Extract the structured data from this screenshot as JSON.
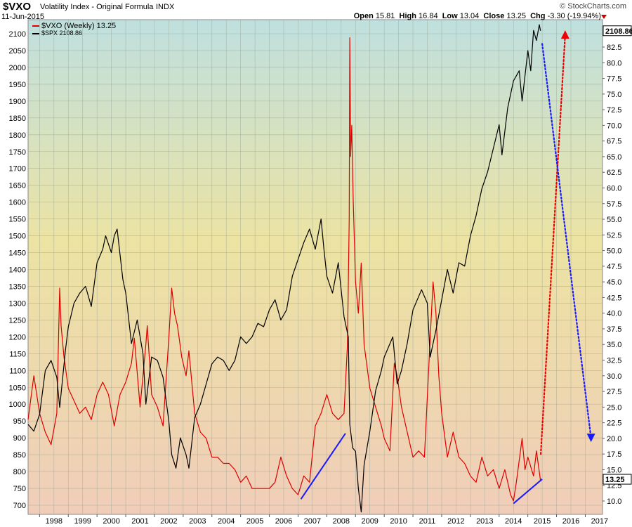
{
  "header": {
    "symbol": "$VXO",
    "subtitle": "Volatility Index - Original Formula",
    "exchange": "INDX",
    "date": "11-Jun-2015",
    "watermark": "© StockCharts.com",
    "open_label": "Open",
    "open_value": "15.81",
    "high_label": "High",
    "high_value": "16.84",
    "low_label": "Low",
    "low_value": "13.04",
    "close_label": "Close",
    "close_value": "13.25",
    "chg_label": "Chg",
    "chg_value": "-3.30 (-19.94%)"
  },
  "legend": {
    "vxo": "$VXO (Weekly) 13.25",
    "spx": "$SPX 2108.86"
  },
  "colors": {
    "vxo": "#dd0000",
    "spx": "#000000",
    "trendline": "#1a1aff",
    "forecast_up": "#ee0000",
    "forecast_down": "#1a1aff"
  },
  "chart_data": {
    "type": "line",
    "x_tick_labels": [
      "1998",
      "1999",
      "2000",
      "2001",
      "2002",
      "2003",
      "2004",
      "2005",
      "2006",
      "2007",
      "2008",
      "2009",
      "2010",
      "2011",
      "2012",
      "2013",
      "2014",
      "2015",
      "2016",
      "2017"
    ],
    "xlim": [
      1997.6,
      2017.6
    ],
    "left_axis": {
      "ticks": [
        700,
        750,
        800,
        850,
        900,
        950,
        1000,
        1050,
        1100,
        1150,
        1200,
        1250,
        1300,
        1350,
        1400,
        1450,
        1500,
        1550,
        1600,
        1650,
        1700,
        1750,
        1800,
        1850,
        1900,
        1950,
        2000,
        2050,
        2100
      ],
      "ylim": [
        671,
        2137
      ]
    },
    "right_axis": {
      "ticks": [
        "10.0",
        "12.5",
        "15.0",
        "17.5",
        "20.0",
        "22.5",
        "25.0",
        "27.5",
        "30.0",
        "32.5",
        "35.0",
        "37.5",
        "40.0",
        "42.5",
        "45.0",
        "47.5",
        "50.0",
        "52.5",
        "55.0",
        "57.5",
        "60.0",
        "62.5",
        "65.0",
        "67.5",
        "70.0",
        "72.5",
        "75.0",
        "77.5",
        "80.0",
        "82.5"
      ],
      "ylim": [
        7.5,
        85.0
      ]
    },
    "last_value_labels": {
      "spx": "2108.86",
      "vxo": "13.25"
    },
    "grid": true,
    "legend_position": "top-left",
    "series": [
      {
        "name": "$VXO (Weekly) 13.25",
        "axis": "right",
        "points": [
          [
            1997.6,
            23
          ],
          [
            1997.8,
            30
          ],
          [
            1998.0,
            24
          ],
          [
            1998.2,
            21
          ],
          [
            1998.4,
            19
          ],
          [
            1998.6,
            24
          ],
          [
            1998.7,
            44
          ],
          [
            1998.75,
            38
          ],
          [
            1998.85,
            33
          ],
          [
            1999.0,
            28
          ],
          [
            1999.2,
            26
          ],
          [
            1999.4,
            24
          ],
          [
            1999.6,
            25
          ],
          [
            1999.8,
            23
          ],
          [
            2000.0,
            27
          ],
          [
            2000.2,
            29
          ],
          [
            2000.4,
            27
          ],
          [
            2000.6,
            22
          ],
          [
            2000.8,
            27
          ],
          [
            2001.0,
            29
          ],
          [
            2001.2,
            32
          ],
          [
            2001.3,
            36
          ],
          [
            2001.5,
            25
          ],
          [
            2001.7,
            35
          ],
          [
            2001.75,
            38
          ],
          [
            2001.9,
            27
          ],
          [
            2002.1,
            25
          ],
          [
            2002.3,
            22
          ],
          [
            2002.5,
            36
          ],
          [
            2002.6,
            44
          ],
          [
            2002.7,
            40
          ],
          [
            2002.8,
            38
          ],
          [
            2002.95,
            33
          ],
          [
            2003.1,
            30
          ],
          [
            2003.2,
            34
          ],
          [
            2003.4,
            24
          ],
          [
            2003.6,
            21
          ],
          [
            2003.8,
            20
          ],
          [
            2004.0,
            17
          ],
          [
            2004.2,
            17
          ],
          [
            2004.4,
            16
          ],
          [
            2004.6,
            16
          ],
          [
            2004.8,
            15
          ],
          [
            2005.0,
            13
          ],
          [
            2005.2,
            14
          ],
          [
            2005.4,
            12
          ],
          [
            2005.6,
            12
          ],
          [
            2005.8,
            12
          ],
          [
            2006.0,
            12
          ],
          [
            2006.2,
            13
          ],
          [
            2006.4,
            17
          ],
          [
            2006.6,
            14
          ],
          [
            2006.8,
            12
          ],
          [
            2007.0,
            11
          ],
          [
            2007.2,
            14
          ],
          [
            2007.4,
            13
          ],
          [
            2007.6,
            22
          ],
          [
            2007.8,
            24
          ],
          [
            2008.0,
            27
          ],
          [
            2008.2,
            24
          ],
          [
            2008.4,
            23
          ],
          [
            2008.6,
            24
          ],
          [
            2008.72,
            35
          ],
          [
            2008.78,
            55
          ],
          [
            2008.8,
            84
          ],
          [
            2008.83,
            65
          ],
          [
            2008.87,
            70
          ],
          [
            2008.92,
            58
          ],
          [
            2009.0,
            45
          ],
          [
            2009.1,
            40
          ],
          [
            2009.2,
            48
          ],
          [
            2009.3,
            35
          ],
          [
            2009.5,
            28
          ],
          [
            2009.7,
            25
          ],
          [
            2009.9,
            22
          ],
          [
            2010.0,
            20
          ],
          [
            2010.2,
            18
          ],
          [
            2010.35,
            32
          ],
          [
            2010.45,
            30
          ],
          [
            2010.6,
            25
          ],
          [
            2010.8,
            21
          ],
          [
            2011.0,
            17
          ],
          [
            2011.2,
            18
          ],
          [
            2011.4,
            17
          ],
          [
            2011.6,
            36
          ],
          [
            2011.7,
            45
          ],
          [
            2011.8,
            40
          ],
          [
            2011.9,
            30
          ],
          [
            2012.0,
            24
          ],
          [
            2012.2,
            17
          ],
          [
            2012.4,
            21
          ],
          [
            2012.6,
            17
          ],
          [
            2012.8,
            16
          ],
          [
            2013.0,
            14
          ],
          [
            2013.2,
            13
          ],
          [
            2013.4,
            17
          ],
          [
            2013.6,
            14
          ],
          [
            2013.8,
            15
          ],
          [
            2014.0,
            12
          ],
          [
            2014.2,
            15
          ],
          [
            2014.4,
            11
          ],
          [
            2014.5,
            10
          ],
          [
            2014.6,
            13
          ],
          [
            2014.8,
            20
          ],
          [
            2014.9,
            15
          ],
          [
            2015.0,
            17
          ],
          [
            2015.2,
            14
          ],
          [
            2015.3,
            18
          ],
          [
            2015.44,
            13.25
          ]
        ]
      },
      {
        "name": "$SPX 2108.86",
        "axis": "left",
        "points": [
          [
            1997.6,
            940
          ],
          [
            1997.8,
            920
          ],
          [
            1998.0,
            970
          ],
          [
            1998.2,
            1100
          ],
          [
            1998.4,
            1130
          ],
          [
            1998.6,
            1080
          ],
          [
            1998.7,
            990
          ],
          [
            1998.9,
            1160
          ],
          [
            1999.0,
            1230
          ],
          [
            1999.2,
            1300
          ],
          [
            1999.4,
            1330
          ],
          [
            1999.6,
            1350
          ],
          [
            1999.8,
            1290
          ],
          [
            2000.0,
            1420
          ],
          [
            2000.2,
            1460
          ],
          [
            2000.3,
            1500
          ],
          [
            2000.5,
            1450
          ],
          [
            2000.6,
            1500
          ],
          [
            2000.7,
            1520
          ],
          [
            2000.9,
            1370
          ],
          [
            2001.0,
            1330
          ],
          [
            2001.2,
            1180
          ],
          [
            2001.4,
            1250
          ],
          [
            2001.6,
            1150
          ],
          [
            2001.7,
            1000
          ],
          [
            2001.9,
            1140
          ],
          [
            2002.1,
            1130
          ],
          [
            2002.3,
            1080
          ],
          [
            2002.5,
            950
          ],
          [
            2002.6,
            850
          ],
          [
            2002.75,
            810
          ],
          [
            2002.9,
            900
          ],
          [
            2003.1,
            850
          ],
          [
            2003.2,
            810
          ],
          [
            2003.4,
            960
          ],
          [
            2003.6,
            1000
          ],
          [
            2003.8,
            1060
          ],
          [
            2004.0,
            1120
          ],
          [
            2004.2,
            1140
          ],
          [
            2004.4,
            1130
          ],
          [
            2004.6,
            1100
          ],
          [
            2004.8,
            1130
          ],
          [
            2005.0,
            1200
          ],
          [
            2005.2,
            1180
          ],
          [
            2005.4,
            1200
          ],
          [
            2005.6,
            1240
          ],
          [
            2005.8,
            1230
          ],
          [
            2006.0,
            1280
          ],
          [
            2006.2,
            1310
          ],
          [
            2006.4,
            1250
          ],
          [
            2006.6,
            1280
          ],
          [
            2006.8,
            1380
          ],
          [
            2007.0,
            1430
          ],
          [
            2007.2,
            1480
          ],
          [
            2007.4,
            1520
          ],
          [
            2007.6,
            1460
          ],
          [
            2007.8,
            1550
          ],
          [
            2007.9,
            1460
          ],
          [
            2008.0,
            1380
          ],
          [
            2008.2,
            1330
          ],
          [
            2008.4,
            1420
          ],
          [
            2008.6,
            1260
          ],
          [
            2008.75,
            1200
          ],
          [
            2008.8,
            940
          ],
          [
            2008.9,
            870
          ],
          [
            2009.0,
            860
          ],
          [
            2009.1,
            750
          ],
          [
            2009.2,
            680
          ],
          [
            2009.3,
            820
          ],
          [
            2009.5,
            920
          ],
          [
            2009.7,
            1040
          ],
          [
            2009.9,
            1100
          ],
          [
            2010.0,
            1140
          ],
          [
            2010.3,
            1200
          ],
          [
            2010.45,
            1060
          ],
          [
            2010.6,
            1100
          ],
          [
            2010.8,
            1180
          ],
          [
            2011.0,
            1280
          ],
          [
            2011.3,
            1340
          ],
          [
            2011.5,
            1300
          ],
          [
            2011.6,
            1140
          ],
          [
            2011.8,
            1220
          ],
          [
            2012.0,
            1310
          ],
          [
            2012.2,
            1400
          ],
          [
            2012.4,
            1330
          ],
          [
            2012.6,
            1420
          ],
          [
            2012.8,
            1410
          ],
          [
            2013.0,
            1500
          ],
          [
            2013.2,
            1560
          ],
          [
            2013.4,
            1640
          ],
          [
            2013.6,
            1690
          ],
          [
            2013.8,
            1760
          ],
          [
            2014.0,
            1830
          ],
          [
            2014.1,
            1740
          ],
          [
            2014.3,
            1880
          ],
          [
            2014.5,
            1960
          ],
          [
            2014.7,
            1990
          ],
          [
            2014.8,
            1900
          ],
          [
            2015.0,
            2050
          ],
          [
            2015.1,
            1990
          ],
          [
            2015.2,
            2110
          ],
          [
            2015.3,
            2080
          ],
          [
            2015.4,
            2127
          ],
          [
            2015.44,
            2108.86
          ]
        ]
      }
    ],
    "annotations": [
      {
        "type": "trendline",
        "color": "blue",
        "style": "solid",
        "axis": "right",
        "from": [
          2007.1,
          10.3
        ],
        "to": [
          2008.65,
          20.8
        ]
      },
      {
        "type": "trendline",
        "color": "blue",
        "style": "solid",
        "axis": "right",
        "from": [
          2014.5,
          9.6
        ],
        "to": [
          2015.5,
          13.5
        ]
      },
      {
        "type": "forecast",
        "color": "red",
        "style": "dotted",
        "axis": "right",
        "from": [
          2015.45,
          17.5
        ],
        "to": [
          2016.3,
          84.5
        ],
        "arrow": "up"
      },
      {
        "type": "forecast",
        "color": "blue",
        "style": "dotted",
        "axis": "left",
        "from": [
          2015.5,
          2070
        ],
        "to": [
          2017.2,
          900
        ],
        "arrow": "down"
      }
    ]
  }
}
